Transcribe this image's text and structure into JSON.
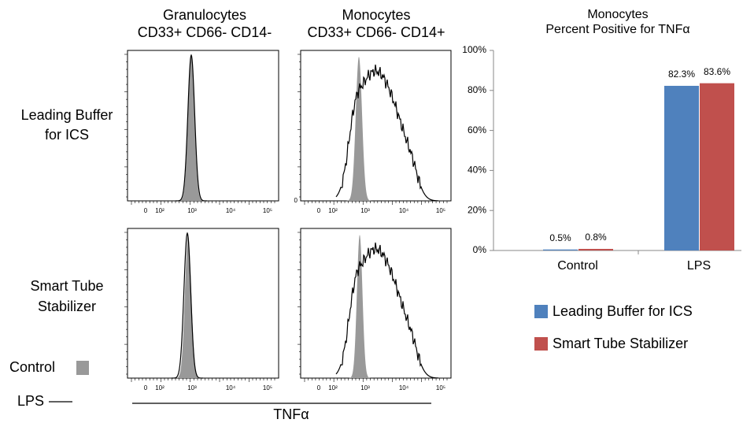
{
  "figure": {
    "column_titles": [
      [
        "Granulocytes",
        "CD33+ CD66- CD14-"
      ],
      [
        "Monocytes",
        "CD33+ CD66- CD14+"
      ]
    ],
    "row_labels": [
      [
        "Leading Buffer",
        "for ICS"
      ],
      [
        "Smart Tube",
        "Stabilizer"
      ]
    ],
    "legend": {
      "control": "Control",
      "lps": "LPS"
    },
    "x_axis_label": "TNFα",
    "histogram_xticks": [
      "0",
      "10²",
      "10³",
      "10⁴",
      "10⁵"
    ],
    "y_tick": "0"
  },
  "chart_data": {
    "type": "bar",
    "title": "Monocytes",
    "subtitle": "Percent Positive for TNFα",
    "categories": [
      "Control",
      "LPS"
    ],
    "series": [
      {
        "name": "Leading Buffer for ICS",
        "color": "#4f81bd",
        "values": [
          0.5,
          82.3
        ],
        "value_labels": [
          "0.5%",
          "82.3%"
        ]
      },
      {
        "name": "Smart Tube Stabilizer",
        "color": "#c0504d",
        "values": [
          0.8,
          83.6
        ],
        "value_labels": [
          "0.8%",
          "83.6%"
        ]
      }
    ],
    "ylim": [
      0,
      100
    ],
    "yticks": [
      {
        "value": 0,
        "label": "0%"
      },
      {
        "value": 20,
        "label": "20%"
      },
      {
        "value": 40,
        "label": "40%"
      },
      {
        "value": 60,
        "label": "60%"
      },
      {
        "value": 80,
        "label": "80%"
      },
      {
        "value": 100,
        "label": "100%"
      }
    ],
    "legend": "bottom"
  }
}
